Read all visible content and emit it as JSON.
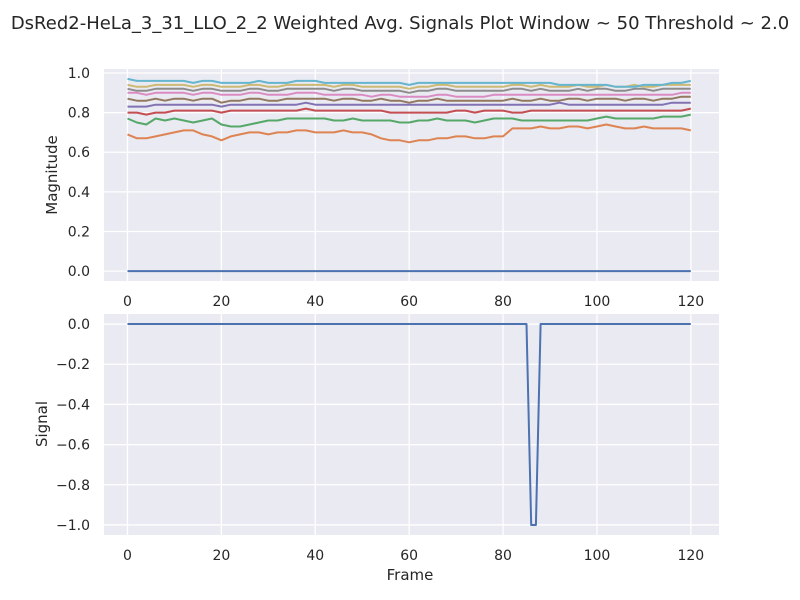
{
  "figure": {
    "title": "DsRed2-HeLa_3_31_LLO_2_2 Weighted Avg. Signals Plot Window ~ 50 Threshold ~ 2.0"
  },
  "palette": [
    "#4c72b0",
    "#dd8452",
    "#55a868",
    "#c44e52",
    "#8172b3",
    "#937860",
    "#da8bc3",
    "#8c8c8c",
    "#ccb974",
    "#64b5cd"
  ],
  "style": {
    "background": "#eaeaf2",
    "grid": "#ffffff",
    "text": "#262626"
  },
  "chart_data": [
    {
      "type": "line",
      "title": "",
      "xlabel": "",
      "ylabel": "Magnitude",
      "xlim": [
        -5,
        126
      ],
      "ylim": [
        -0.05,
        1.02
      ],
      "xticks": [
        "0",
        "20",
        "40",
        "60",
        "80",
        "100",
        "120"
      ],
      "yticks": [
        "0.0",
        "0.2",
        "0.4",
        "0.6",
        "0.8",
        "1.0"
      ],
      "grid": true,
      "x": {
        "start": 0,
        "end": 120,
        "step": 2
      },
      "series": [
        {
          "color": "#4c72b0",
          "values": [
            0.0,
            0.0,
            0.0,
            0.0,
            0.0,
            0.0,
            0.0,
            0.0,
            0.0,
            0.0,
            0.0,
            0.0,
            0.0,
            0.0,
            0.0,
            0.0,
            0.0,
            0.0,
            0.0,
            0.0,
            0.0,
            0.0,
            0.0,
            0.0,
            0.0,
            0.0,
            0.0,
            0.0,
            0.0,
            0.0,
            0.0,
            0.0,
            0.0,
            0.0,
            0.0,
            0.0,
            0.0,
            0.0,
            0.0,
            0.0,
            0.0,
            0.0,
            0.0,
            0.0,
            0.0,
            0.0,
            0.0,
            0.0,
            0.0,
            0.0,
            0.0,
            0.0,
            0.0,
            0.0,
            0.0,
            0.0,
            0.0,
            0.0,
            0.0,
            0.0,
            0.0
          ]
        },
        {
          "color": "#dd8452",
          "values": [
            0.69,
            0.67,
            0.67,
            0.68,
            0.69,
            0.7,
            0.71,
            0.71,
            0.69,
            0.68,
            0.66,
            0.68,
            0.69,
            0.7,
            0.7,
            0.69,
            0.7,
            0.7,
            0.71,
            0.71,
            0.7,
            0.7,
            0.7,
            0.71,
            0.7,
            0.7,
            0.69,
            0.67,
            0.66,
            0.66,
            0.65,
            0.66,
            0.66,
            0.67,
            0.67,
            0.68,
            0.68,
            0.67,
            0.67,
            0.68,
            0.68,
            0.72,
            0.72,
            0.72,
            0.73,
            0.72,
            0.72,
            0.73,
            0.73,
            0.72,
            0.73,
            0.74,
            0.73,
            0.72,
            0.72,
            0.73,
            0.72,
            0.72,
            0.72,
            0.72,
            0.71
          ]
        },
        {
          "color": "#55a868",
          "values": [
            0.77,
            0.75,
            0.74,
            0.77,
            0.76,
            0.77,
            0.76,
            0.75,
            0.76,
            0.77,
            0.74,
            0.73,
            0.73,
            0.74,
            0.75,
            0.76,
            0.76,
            0.77,
            0.77,
            0.77,
            0.77,
            0.77,
            0.76,
            0.76,
            0.77,
            0.76,
            0.76,
            0.76,
            0.76,
            0.75,
            0.75,
            0.76,
            0.76,
            0.77,
            0.76,
            0.76,
            0.76,
            0.75,
            0.76,
            0.77,
            0.77,
            0.77,
            0.76,
            0.76,
            0.76,
            0.76,
            0.76,
            0.76,
            0.76,
            0.76,
            0.77,
            0.78,
            0.77,
            0.77,
            0.77,
            0.77,
            0.77,
            0.78,
            0.78,
            0.78,
            0.79
          ]
        },
        {
          "color": "#c44e52",
          "values": [
            0.8,
            0.8,
            0.79,
            0.8,
            0.8,
            0.81,
            0.81,
            0.81,
            0.81,
            0.81,
            0.8,
            0.81,
            0.81,
            0.81,
            0.81,
            0.81,
            0.81,
            0.81,
            0.81,
            0.82,
            0.81,
            0.81,
            0.81,
            0.81,
            0.81,
            0.81,
            0.81,
            0.81,
            0.8,
            0.8,
            0.8,
            0.8,
            0.8,
            0.8,
            0.8,
            0.81,
            0.81,
            0.8,
            0.81,
            0.81,
            0.81,
            0.8,
            0.8,
            0.81,
            0.81,
            0.81,
            0.81,
            0.81,
            0.81,
            0.81,
            0.81,
            0.81,
            0.81,
            0.81,
            0.81,
            0.81,
            0.81,
            0.81,
            0.81,
            0.81,
            0.82
          ]
        },
        {
          "color": "#8172b3",
          "values": [
            0.83,
            0.83,
            0.83,
            0.84,
            0.84,
            0.84,
            0.84,
            0.84,
            0.84,
            0.84,
            0.83,
            0.84,
            0.84,
            0.84,
            0.84,
            0.84,
            0.84,
            0.84,
            0.84,
            0.85,
            0.84,
            0.84,
            0.84,
            0.84,
            0.84,
            0.84,
            0.84,
            0.84,
            0.84,
            0.84,
            0.84,
            0.84,
            0.84,
            0.84,
            0.84,
            0.84,
            0.84,
            0.84,
            0.84,
            0.84,
            0.84,
            0.84,
            0.84,
            0.84,
            0.84,
            0.84,
            0.85,
            0.84,
            0.84,
            0.84,
            0.84,
            0.84,
            0.84,
            0.84,
            0.84,
            0.84,
            0.84,
            0.84,
            0.85,
            0.85,
            0.85
          ]
        },
        {
          "color": "#937860",
          "values": [
            0.87,
            0.86,
            0.86,
            0.87,
            0.86,
            0.87,
            0.87,
            0.86,
            0.87,
            0.87,
            0.85,
            0.86,
            0.86,
            0.87,
            0.87,
            0.86,
            0.86,
            0.87,
            0.87,
            0.87,
            0.87,
            0.87,
            0.86,
            0.87,
            0.87,
            0.86,
            0.86,
            0.87,
            0.86,
            0.86,
            0.85,
            0.86,
            0.86,
            0.87,
            0.86,
            0.86,
            0.86,
            0.86,
            0.86,
            0.86,
            0.86,
            0.87,
            0.86,
            0.86,
            0.87,
            0.86,
            0.86,
            0.87,
            0.87,
            0.86,
            0.87,
            0.87,
            0.87,
            0.86,
            0.87,
            0.87,
            0.86,
            0.87,
            0.87,
            0.88,
            0.88
          ]
        },
        {
          "color": "#da8bc3",
          "values": [
            0.9,
            0.9,
            0.89,
            0.9,
            0.9,
            0.9,
            0.9,
            0.89,
            0.9,
            0.9,
            0.89,
            0.89,
            0.89,
            0.9,
            0.9,
            0.89,
            0.89,
            0.89,
            0.9,
            0.9,
            0.9,
            0.89,
            0.89,
            0.89,
            0.89,
            0.89,
            0.88,
            0.89,
            0.89,
            0.88,
            0.88,
            0.88,
            0.88,
            0.89,
            0.89,
            0.88,
            0.88,
            0.88,
            0.88,
            0.89,
            0.89,
            0.89,
            0.89,
            0.89,
            0.89,
            0.89,
            0.89,
            0.89,
            0.89,
            0.89,
            0.89,
            0.89,
            0.89,
            0.89,
            0.89,
            0.89,
            0.89,
            0.89,
            0.89,
            0.9,
            0.9
          ]
        },
        {
          "color": "#8c8c8c",
          "values": [
            0.92,
            0.91,
            0.91,
            0.92,
            0.92,
            0.92,
            0.92,
            0.91,
            0.92,
            0.92,
            0.91,
            0.91,
            0.91,
            0.92,
            0.92,
            0.91,
            0.91,
            0.92,
            0.92,
            0.92,
            0.92,
            0.92,
            0.91,
            0.92,
            0.92,
            0.91,
            0.91,
            0.91,
            0.91,
            0.91,
            0.9,
            0.91,
            0.91,
            0.92,
            0.92,
            0.91,
            0.91,
            0.91,
            0.91,
            0.91,
            0.91,
            0.92,
            0.92,
            0.91,
            0.92,
            0.91,
            0.91,
            0.91,
            0.92,
            0.91,
            0.92,
            0.92,
            0.91,
            0.91,
            0.92,
            0.92,
            0.91,
            0.92,
            0.92,
            0.92,
            0.92
          ]
        },
        {
          "color": "#ccb974",
          "values": [
            0.94,
            0.93,
            0.93,
            0.94,
            0.94,
            0.94,
            0.94,
            0.93,
            0.94,
            0.94,
            0.93,
            0.93,
            0.93,
            0.94,
            0.94,
            0.93,
            0.93,
            0.94,
            0.94,
            0.94,
            0.94,
            0.94,
            0.93,
            0.94,
            0.94,
            0.93,
            0.93,
            0.93,
            0.93,
            0.93,
            0.92,
            0.93,
            0.93,
            0.94,
            0.94,
            0.93,
            0.93,
            0.93,
            0.93,
            0.93,
            0.93,
            0.94,
            0.94,
            0.93,
            0.94,
            0.93,
            0.93,
            0.93,
            0.94,
            0.93,
            0.93,
            0.94,
            0.93,
            0.93,
            0.94,
            0.93,
            0.93,
            0.94,
            0.94,
            0.94,
            0.94
          ]
        },
        {
          "color": "#64b5cd",
          "values": [
            0.97,
            0.96,
            0.96,
            0.96,
            0.96,
            0.96,
            0.96,
            0.95,
            0.96,
            0.96,
            0.95,
            0.95,
            0.95,
            0.95,
            0.96,
            0.95,
            0.95,
            0.95,
            0.96,
            0.96,
            0.96,
            0.95,
            0.95,
            0.95,
            0.95,
            0.95,
            0.95,
            0.95,
            0.95,
            0.95,
            0.94,
            0.95,
            0.95,
            0.95,
            0.95,
            0.95,
            0.95,
            0.95,
            0.95,
            0.95,
            0.95,
            0.95,
            0.95,
            0.95,
            0.95,
            0.95,
            0.94,
            0.94,
            0.94,
            0.94,
            0.94,
            0.94,
            0.93,
            0.93,
            0.93,
            0.94,
            0.94,
            0.94,
            0.95,
            0.95,
            0.96
          ]
        }
      ]
    },
    {
      "type": "line",
      "title": "",
      "xlabel": "Frame",
      "ylabel": "Signal",
      "xlim": [
        -5,
        126
      ],
      "ylim": [
        -1.05,
        0.05
      ],
      "xticks": [
        "0",
        "20",
        "40",
        "60",
        "80",
        "100",
        "120"
      ],
      "yticks": [
        "0.0",
        "−0.2",
        "−0.4",
        "−0.6",
        "−0.8",
        "−1.0"
      ],
      "grid": true,
      "series": [
        {
          "color": "#4c72b0",
          "x": [
            0,
            85,
            86,
            87,
            88,
            120
          ],
          "values": [
            0,
            0,
            -1,
            -1,
            0,
            0
          ]
        }
      ]
    }
  ]
}
